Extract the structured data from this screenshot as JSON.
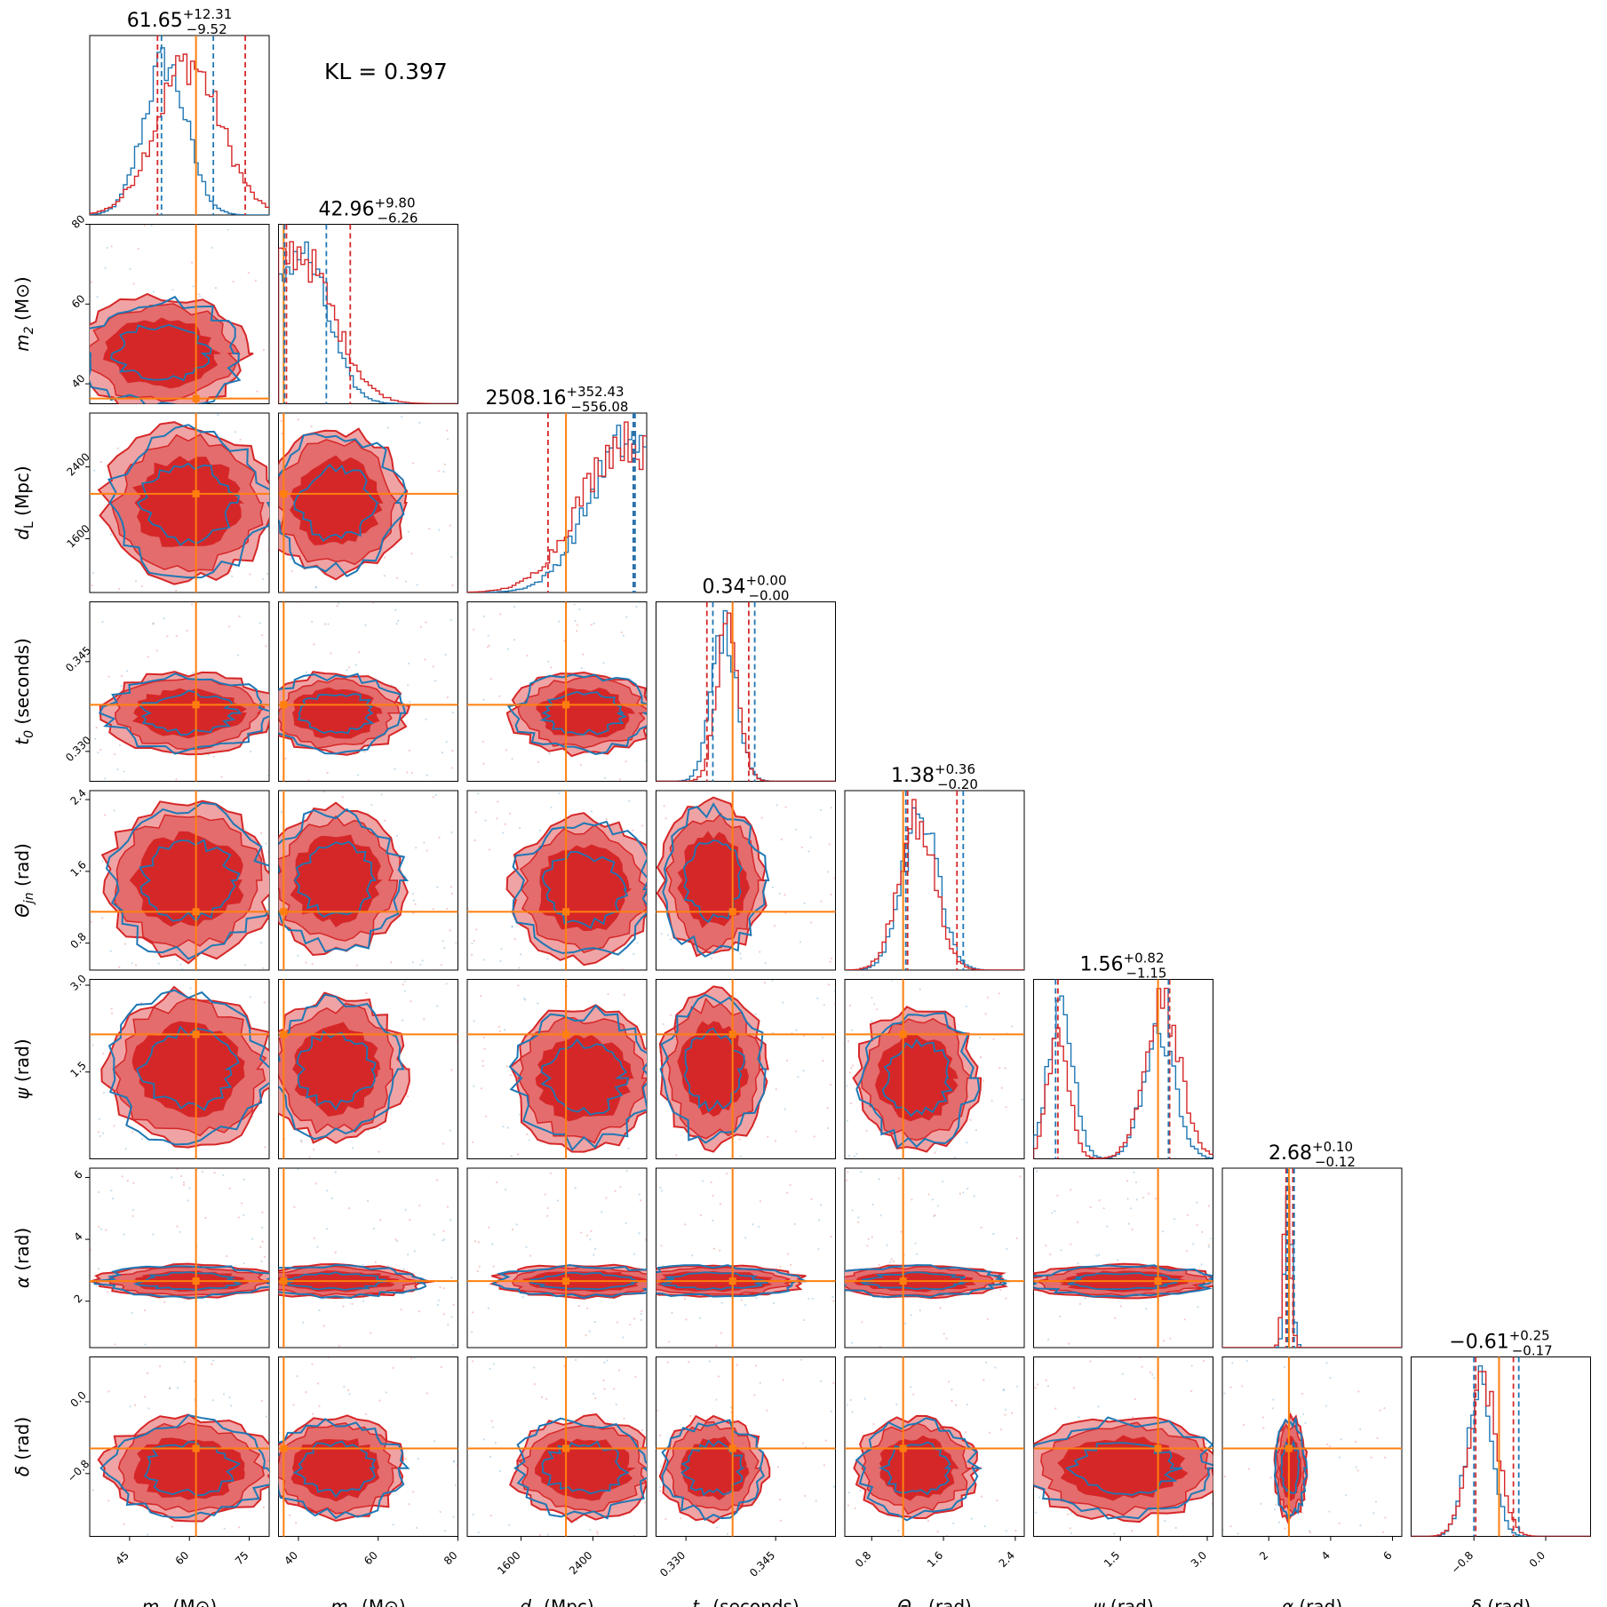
{
  "chart_data": {
    "type": "corner",
    "kl_label": "KL = 0.397",
    "series": [
      {
        "name": "",
        "color": "#d62728"
      },
      {
        "name": "",
        "color": "#1f77b4"
      }
    ],
    "truth_color": "#ff7f0e",
    "params": [
      {
        "key": "m1",
        "sym": "m",
        "sub": "1",
        "unit": "(M⊙)",
        "range": [
          35,
          80
        ],
        "ticks": [
          "45",
          "60",
          "75"
        ],
        "truth": 61.65,
        "title": {
          "value": "61.65",
          "plus": "+12.31",
          "minus": "−9.52"
        },
        "quantiles": {
          "series_a": [
            52,
            74
          ],
          "series_b": [
            53,
            66
          ]
        }
      },
      {
        "key": "m2",
        "sym": "m",
        "sub": "2",
        "unit": "(M⊙)",
        "range": [
          35,
          80
        ],
        "ticks": [
          "40",
          "60",
          "80"
        ],
        "truth": 36.3,
        "title": {
          "value": "42.96",
          "plus": "+9.80",
          "minus": "−6.26"
        },
        "quantiles": {
          "series_a": [
            37,
            53
          ],
          "series_b": [
            36.5,
            47
          ]
        }
      },
      {
        "key": "dL",
        "sym": "d",
        "sub": "L",
        "unit": "(Mpc)",
        "range": [
          1000,
          3000
        ],
        "ticks": [
          "1600",
          "2400"
        ],
        "truth": 2100,
        "title": {
          "value": "2508.16",
          "plus": "+352.43",
          "minus": "−556.08"
        },
        "quantiles": {
          "series_a": [
            1900,
            2860
          ],
          "series_b": [
            2850,
            2870
          ]
        }
      },
      {
        "key": "t0",
        "sym": "t",
        "sub": "0",
        "unit": "(seconds)",
        "range": [
          0.325,
          0.355
        ],
        "ticks": [
          "0.330",
          "0.345"
        ],
        "truth": 0.3378,
        "title": {
          "value": "0.34",
          "plus": "+0.00",
          "minus": "−0.00"
        },
        "quantiles": {
          "series_a": [
            0.3335,
            0.3405
          ],
          "series_b": [
            0.3345,
            0.3415
          ]
        }
      },
      {
        "key": "theta",
        "sym": "Θ",
        "sub": "jn",
        "unit": "(rad)",
        "range": [
          0.5,
          2.5
        ],
        "ticks": [
          "0.8",
          "1.6",
          "2.4"
        ],
        "truth": 1.15,
        "title": {
          "value": "1.38",
          "plus": "+0.36",
          "minus": "−0.20"
        },
        "quantiles": {
          "series_a": [
            1.2,
            1.75
          ],
          "series_b": [
            1.18,
            1.82
          ]
        }
      },
      {
        "key": "psi",
        "sym": "ψ",
        "sub": "",
        "unit": "(rad)",
        "range": [
          0,
          3.1
        ],
        "ticks": [
          "1.5",
          "3.0"
        ],
        "truth": 2.15,
        "title": {
          "value": "1.56",
          "plus": "+0.82",
          "minus": "−1.15"
        },
        "quantiles": {
          "series_a": [
            0.42,
            2.35
          ],
          "series_b": [
            0.38,
            2.33
          ]
        }
      },
      {
        "key": "alpha",
        "sym": "α",
        "sub": "",
        "unit": "(rad)",
        "range": [
          0.5,
          6.3
        ],
        "ticks": [
          "2",
          "4",
          "6"
        ],
        "truth": 2.65,
        "title": {
          "value": "2.68",
          "plus": "+0.10",
          "minus": "−0.12"
        },
        "quantiles": {
          "series_a": [
            2.56,
            2.78
          ],
          "series_b": [
            2.6,
            2.82
          ]
        }
      },
      {
        "key": "delta",
        "sym": "δ",
        "sub": "",
        "unit": "(rad)",
        "range": [
          -1.5,
          0.5
        ],
        "ticks": [
          "−0.8",
          "0.0"
        ],
        "truth": -0.52,
        "title": {
          "value": "−0.61",
          "plus": "+0.25",
          "minus": "−0.17"
        },
        "quantiles": {
          "series_a": [
            -0.78,
            -0.36
          ],
          "series_b": [
            -0.8,
            -0.3
          ]
        }
      }
    ],
    "y_axis_ticks": {
      "m2": [
        "40",
        "60",
        "80"
      ],
      "dL": [
        "1600",
        "2400"
      ],
      "t0": [
        "0.330",
        "0.345"
      ],
      "theta": [
        "0.8",
        "1.6",
        "2.4"
      ],
      "psi": [
        "1.5",
        "3.0"
      ],
      "alpha": [
        "2",
        "4",
        "6"
      ],
      "delta": [
        "−0.8",
        "0.0"
      ]
    }
  }
}
